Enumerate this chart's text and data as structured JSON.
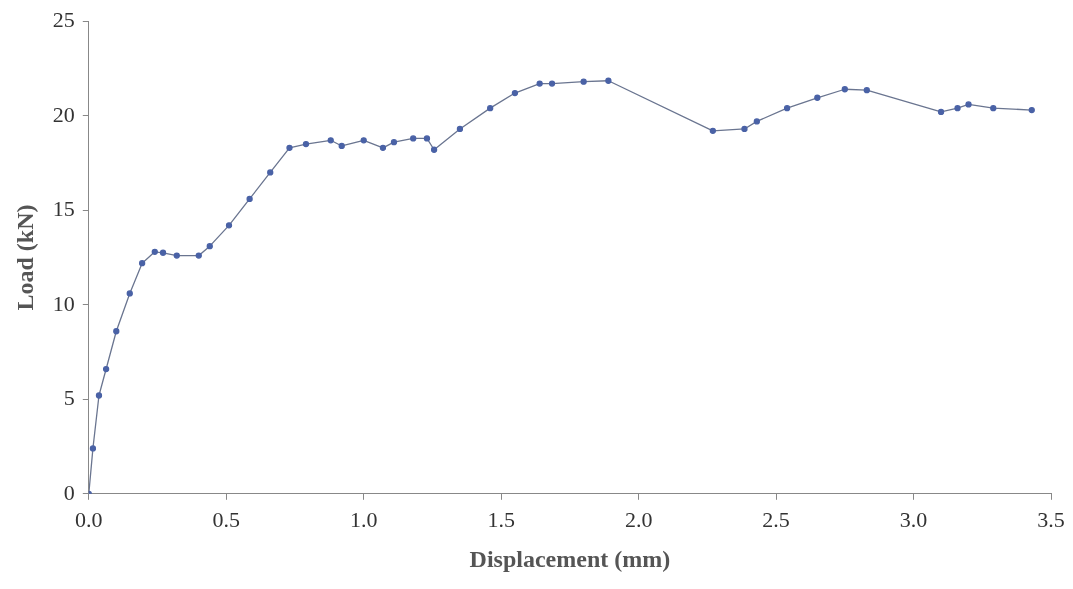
{
  "chart_data": {
    "type": "line",
    "xlabel": "Displacement (mm)",
    "ylabel": "Load (kN)",
    "x": [
      0,
      0.015,
      0.037,
      0.063,
      0.1,
      0.149,
      0.194,
      0.24,
      0.27,
      0.32,
      0.4,
      0.44,
      0.51,
      0.585,
      0.66,
      0.73,
      0.79,
      0.88,
      0.92,
      1.0,
      1.07,
      1.11,
      1.18,
      1.23,
      1.256,
      1.35,
      1.46,
      1.55,
      1.64,
      1.685,
      1.8,
      1.89,
      2.27,
      2.385,
      2.43,
      2.54,
      2.65,
      2.75,
      2.83,
      3.1,
      3.16,
      3.2,
      3.29,
      3.43
    ],
    "series": [
      {
        "color": "#4a62a6",
        "values": [
          0,
          2.4,
          5.2,
          6.6,
          8.6,
          10.6,
          12.2,
          12.8,
          12.75,
          12.6,
          12.6,
          13.1,
          14.2,
          15.6,
          17.0,
          18.3,
          18.5,
          18.7,
          18.4,
          18.7,
          18.3,
          18.6,
          18.8,
          18.8,
          18.2,
          19.3,
          20.4,
          21.2,
          21.7,
          21.7,
          21.8,
          21.85,
          19.2,
          19.3,
          19.7,
          20.4,
          20.95,
          21.4,
          21.35,
          20.2,
          20.4,
          20.6,
          20.4,
          20.3
        ]
      }
    ],
    "xlim": [
      0,
      3.5
    ],
    "xticks": [
      {
        "value": 0,
        "label": "0.0"
      },
      0.5,
      {
        "value": 1,
        "label": "1.0"
      },
      1.5,
      {
        "value": 2,
        "label": "2.0"
      },
      2.5,
      {
        "value": 3,
        "label": "3.0"
      },
      3.5
    ],
    "ylim": [
      0,
      25
    ],
    "yticks": [
      0,
      5,
      10,
      15,
      20,
      25
    ],
    "grid": false,
    "legend": false,
    "marker": "circle",
    "line_style": "solid"
  }
}
